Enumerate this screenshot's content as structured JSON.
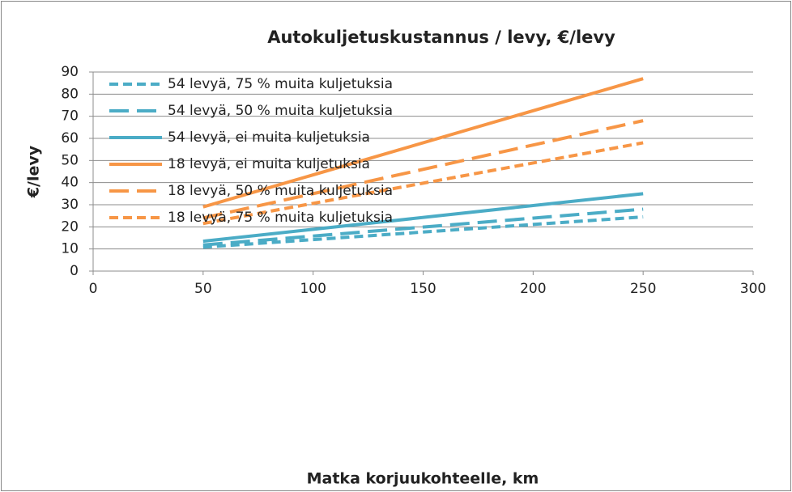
{
  "chart_data": {
    "type": "line",
    "title": "Autokuljetuskustannus / levy, €/levy",
    "x_label": "Matka korjuukohteelle, km",
    "y_label": "€/levy",
    "xlim": [
      0,
      300
    ],
    "xticks": [
      0,
      50,
      100,
      150,
      200,
      250,
      300
    ],
    "ylim": [
      0,
      90
    ],
    "yticks": [
      0,
      10,
      20,
      30,
      40,
      50,
      60,
      70,
      80,
      90
    ],
    "grid": true,
    "legend": "top-left",
    "x": [
      50,
      250
    ],
    "series": [
      {
        "name": "54 levyä, 75 % muita kuljetuksia",
        "color": "#4bacc6",
        "line_style": "short-dash",
        "values": [
          10.8,
          24.5
        ]
      },
      {
        "name": "54 levyä, 50 % muita kuljetuksia",
        "color": "#4bacc6",
        "line_style": "long-dash",
        "values": [
          11.8,
          28
        ]
      },
      {
        "name": "54 levyä, ei muita kuljetuksia",
        "color": "#4bacc6",
        "line_style": "solid",
        "values": [
          13.5,
          35
        ]
      },
      {
        "name": "18 levyä, ei muita kuljetuksia",
        "color": "#f79646",
        "line_style": "solid",
        "values": [
          29,
          87
        ]
      },
      {
        "name": "18 levyä, 50 % muita kuljetuksia",
        "color": "#f79646",
        "line_style": "long-dash",
        "values": [
          24,
          68
        ]
      },
      {
        "name": "18 levyä, 75 % muita kuljetuksia",
        "color": "#f79646",
        "line_style": "short-dash",
        "values": [
          21.5,
          58
        ]
      }
    ]
  }
}
